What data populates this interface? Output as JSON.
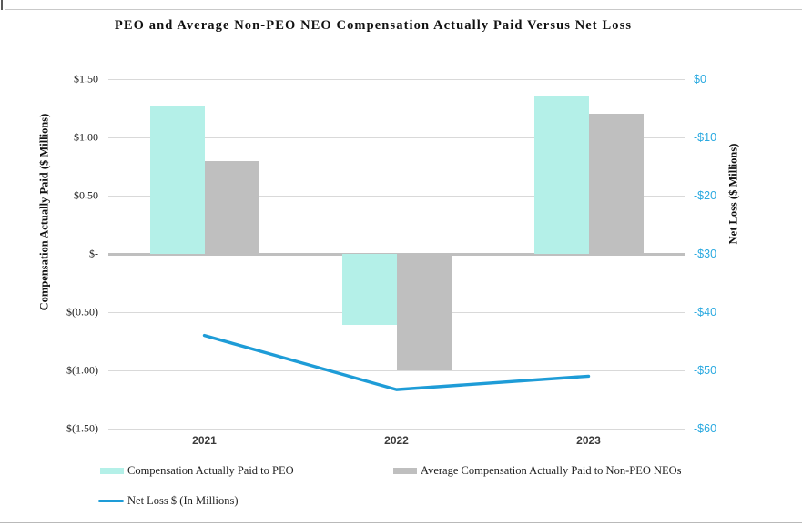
{
  "chart_data": {
    "type": "bar",
    "subtype": "combo-bar-line",
    "title": "PEO and Average Non-PEO NEO Compensation Actually Paid Versus Net Loss",
    "categories": [
      "2021",
      "2022",
      "2023"
    ],
    "series": [
      {
        "id": "peo",
        "name": "Compensation Actually Paid to PEO",
        "type": "bar",
        "axis": "left",
        "color": "#b4f0e8",
        "values": [
          1.27,
          -0.61,
          1.35
        ]
      },
      {
        "id": "non-peo-neo",
        "name": "Average Compensation Actually Paid to Non-PEO NEOs",
        "type": "bar",
        "axis": "left",
        "color": "#bfbfbf",
        "values": [
          0.8,
          -1.0,
          1.2
        ]
      },
      {
        "id": "net-loss",
        "name": "Net Loss $ (In Millions)",
        "type": "line",
        "axis": "right",
        "color": "#1e9cd7",
        "values": [
          -44,
          -53.3,
          -51
        ]
      }
    ],
    "left_axis": {
      "label": "Compensation Actually Paid ($ Millions)",
      "min": -1.5,
      "max": 1.5,
      "ticks": [
        "$1.50",
        "$1.00",
        "$0.50",
        "$-",
        "$(0.50)",
        "$(1.00)",
        "$(1.50)"
      ]
    },
    "right_axis": {
      "label": "Net Loss ($ Millions)",
      "min": -60,
      "max": 0,
      "ticks": [
        "$0",
        "-$10",
        "-$20",
        "-$30",
        "-$40",
        "-$50",
        "-$60"
      ],
      "tick_color": "#29a9e0"
    },
    "grid": true,
    "gridline_color": "#d9d9d9",
    "zero_line_color": "#bfbfbf",
    "legend_position": "bottom"
  }
}
